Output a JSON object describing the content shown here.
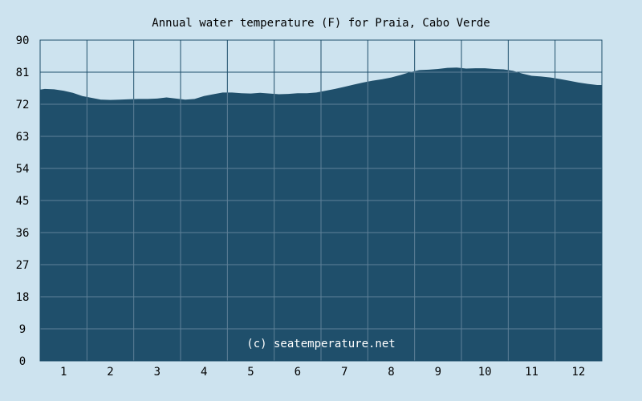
{
  "chart_data": {
    "type": "area",
    "title": "Annual water temperature (F) for Praia, Cabo Verde",
    "watermark": "(c) seatemperature.net",
    "xlabel": "",
    "ylabel": "",
    "xlim": [
      0.5,
      12.5
    ],
    "ylim": [
      0,
      90
    ],
    "x_ticks": [
      "1",
      "2",
      "3",
      "4",
      "5",
      "6",
      "7",
      "8",
      "9",
      "10",
      "11",
      "12"
    ],
    "y_ticks": [
      "0",
      "9",
      "18",
      "27",
      "36",
      "45",
      "54",
      "63",
      "72",
      "81",
      "90"
    ],
    "grid": true,
    "colors": {
      "background": "#cde3ef",
      "plot_area": "#cde3ef",
      "fill": "#1f4f6b",
      "grid_on_light": "#1f4f6b",
      "grid_on_dark": "#5f8198",
      "text": "#000000",
      "watermark": "#ffffff"
    },
    "series": [
      {
        "x": [
          0.5,
          0.6,
          0.8,
          1.0,
          1.2,
          1.4,
          1.6,
          1.8,
          2.0,
          2.2,
          2.4,
          2.6,
          2.8,
          3.0,
          3.2,
          3.4,
          3.6,
          3.8,
          4.0,
          4.2,
          4.4,
          4.6,
          4.8,
          5.0,
          5.2,
          5.4,
          5.6,
          5.8,
          6.0,
          6.2,
          6.4,
          6.6,
          6.8,
          7.0,
          7.2,
          7.4,
          7.6,
          7.8,
          8.0,
          8.2,
          8.4,
          8.6,
          8.8,
          9.0,
          9.2,
          9.4,
          9.6,
          9.8,
          10.0,
          10.2,
          10.4,
          10.6,
          10.8,
          11.0,
          11.2,
          11.4,
          11.6,
          11.8,
          12.0,
          12.2,
          12.4,
          12.5
        ],
        "values": [
          76.1,
          76.3,
          76.2,
          75.8,
          75.2,
          74.3,
          73.8,
          73.3,
          73.2,
          73.3,
          73.4,
          73.5,
          73.5,
          73.6,
          73.9,
          73.6,
          73.3,
          73.5,
          74.3,
          74.8,
          75.3,
          75.3,
          75.1,
          75.0,
          75.2,
          75.0,
          74.8,
          74.9,
          75.1,
          75.1,
          75.3,
          75.8,
          76.3,
          76.9,
          77.5,
          78.1,
          78.6,
          79.0,
          79.5,
          80.2,
          81.0,
          81.6,
          81.7,
          81.9,
          82.2,
          82.3,
          82.0,
          82.1,
          82.1,
          81.9,
          81.8,
          81.4,
          80.6,
          80.0,
          79.8,
          79.5,
          79.1,
          78.6,
          78.1,
          77.7,
          77.4,
          77.4
        ]
      }
    ]
  }
}
